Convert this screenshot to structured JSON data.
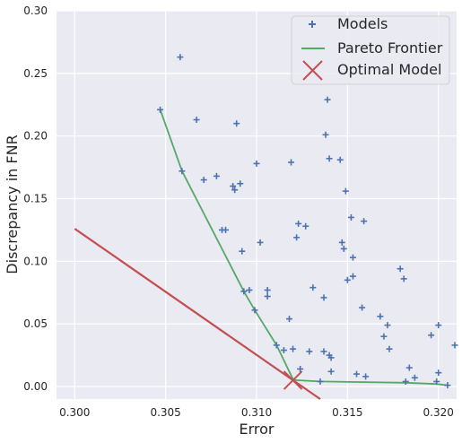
{
  "chart_data": {
    "type": "scatter",
    "title": "",
    "xlabel": "Error",
    "ylabel": "Discrepancy in FNR",
    "xlim": [
      0.299,
      0.321
    ],
    "ylim": [
      -0.01,
      0.3
    ],
    "x_ticks": [
      "0.300",
      "0.305",
      "0.310",
      "0.315",
      "0.320"
    ],
    "x_tick_values": [
      0.3,
      0.305,
      0.31,
      0.315,
      0.32
    ],
    "y_ticks": [
      "0.00",
      "0.05",
      "0.10",
      "0.15",
      "0.20",
      "0.25",
      "0.30"
    ],
    "y_tick_values": [
      0.0,
      0.05,
      0.1,
      0.15,
      0.2,
      0.25,
      0.3
    ],
    "grid": true,
    "legend_position": "top-right",
    "colors": {
      "background": "#eaeaf2",
      "grid": "#ffffff",
      "models": "#4c72b0",
      "pareto": "#55a868",
      "optimal": "#c44e52"
    },
    "series": [
      {
        "name": "Models",
        "kind": "scatter",
        "marker": "plus",
        "points": [
          [
            0.3047,
            0.221
          ],
          [
            0.3058,
            0.263
          ],
          [
            0.3059,
            0.172
          ],
          [
            0.3067,
            0.213
          ],
          [
            0.3071,
            0.165
          ],
          [
            0.3078,
            0.168
          ],
          [
            0.3081,
            0.125
          ],
          [
            0.3083,
            0.125
          ],
          [
            0.3087,
            0.16
          ],
          [
            0.3088,
            0.157
          ],
          [
            0.3089,
            0.21
          ],
          [
            0.3091,
            0.162
          ],
          [
            0.3092,
            0.108
          ],
          [
            0.3093,
            0.076
          ],
          [
            0.3096,
            0.077
          ],
          [
            0.3099,
            0.061
          ],
          [
            0.31,
            0.178
          ],
          [
            0.3102,
            0.115
          ],
          [
            0.3106,
            0.077
          ],
          [
            0.3106,
            0.072
          ],
          [
            0.3111,
            0.033
          ],
          [
            0.3115,
            0.029
          ],
          [
            0.3118,
            0.054
          ],
          [
            0.3119,
            0.179
          ],
          [
            0.312,
            0.03
          ],
          [
            0.3122,
            0.119
          ],
          [
            0.3123,
            0.13
          ],
          [
            0.3124,
            0.014
          ],
          [
            0.3127,
            0.128
          ],
          [
            0.3129,
            0.028
          ],
          [
            0.3131,
            0.079
          ],
          [
            0.3135,
            0.004
          ],
          [
            0.3137,
            0.028
          ],
          [
            0.3137,
            0.071
          ],
          [
            0.3138,
            0.201
          ],
          [
            0.3139,
            0.229
          ],
          [
            0.314,
            0.182
          ],
          [
            0.314,
            0.025
          ],
          [
            0.3141,
            0.023
          ],
          [
            0.3141,
            0.012
          ],
          [
            0.3146,
            0.181
          ],
          [
            0.3147,
            0.115
          ],
          [
            0.3148,
            0.11
          ],
          [
            0.3149,
            0.156
          ],
          [
            0.315,
            0.085
          ],
          [
            0.3152,
            0.135
          ],
          [
            0.3153,
            0.103
          ],
          [
            0.3153,
            0.088
          ],
          [
            0.3155,
            0.01
          ],
          [
            0.3158,
            0.063
          ],
          [
            0.3159,
            0.132
          ],
          [
            0.316,
            0.008
          ],
          [
            0.3168,
            0.056
          ],
          [
            0.317,
            0.04
          ],
          [
            0.3172,
            0.049
          ],
          [
            0.3173,
            0.03
          ],
          [
            0.3179,
            0.094
          ],
          [
            0.3181,
            0.086
          ],
          [
            0.3182,
            0.004
          ],
          [
            0.3184,
            0.015
          ],
          [
            0.3187,
            0.007
          ],
          [
            0.3196,
            0.041
          ],
          [
            0.3199,
            0.004
          ],
          [
            0.32,
            0.049
          ],
          [
            0.32,
            0.011
          ],
          [
            0.3205,
            0.001
          ],
          [
            0.3209,
            0.033
          ]
        ]
      },
      {
        "name": "Pareto Frontier",
        "kind": "line",
        "points": [
          [
            0.3047,
            0.221
          ],
          [
            0.3059,
            0.172
          ],
          [
            0.3093,
            0.076
          ],
          [
            0.3099,
            0.061
          ],
          [
            0.3111,
            0.033
          ],
          [
            0.312,
            0.006
          ],
          [
            0.3122,
            0.005
          ],
          [
            0.3135,
            0.004
          ],
          [
            0.3182,
            0.003
          ],
          [
            0.3199,
            0.002
          ],
          [
            0.3205,
            0.001
          ]
        ]
      },
      {
        "name": "Optimal Model",
        "kind": "point",
        "marker": "x",
        "points": [
          [
            0.312,
            0.005
          ]
        ]
      }
    ],
    "reference_line": {
      "points": [
        [
          0.3,
          0.126
        ],
        [
          0.3135,
          -0.01
        ]
      ]
    }
  }
}
